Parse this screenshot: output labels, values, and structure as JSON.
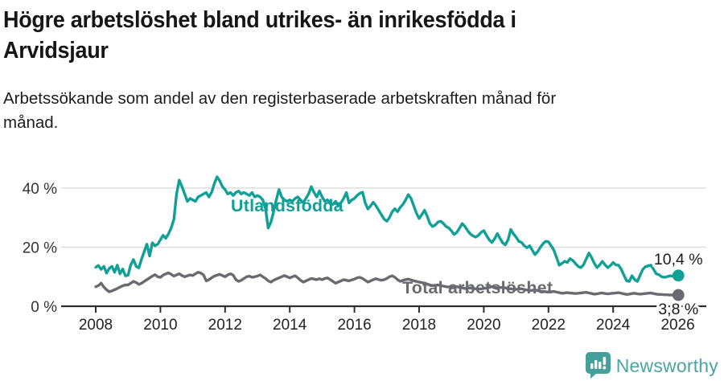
{
  "header": {
    "title_lines": [
      "Högre arbetslöshet bland utrikes- än inrikesfödda i",
      "Arvidsjaur"
    ],
    "subtitle_lines": [
      "Arbetssökande som andel av den registerbaserade arbetskraften månad för",
      "månad."
    ]
  },
  "footer": {
    "brand": "Newsworthy"
  },
  "colors": {
    "foreign_born": "#11a096",
    "total": "#6a6a71",
    "grid": "#d8d8d8",
    "axis": "#2e2e2e",
    "tick_label": "#222222",
    "value_label": "#1a1a1a",
    "logo": "#45a09c"
  },
  "chart_data": {
    "type": "line",
    "title": "Högre arbetslöshet bland utrikes- än inrikesfödda i Arvidsjaur",
    "subtitle": "Arbetssökande som andel av den registerbaserade arbetskraften månad för månad.",
    "x_unit": "monthly, Jan 2008 – Dec 2025",
    "x_start_year": 2008,
    "x_step_months": 1,
    "ylim": [
      0,
      46
    ],
    "grid": "horizontal",
    "legend_position": "inline-labels",
    "y_ticks": [
      {
        "value": 0,
        "label": "0 %"
      },
      {
        "value": 20,
        "label": "20 %"
      },
      {
        "value": 40,
        "label": "40 %"
      }
    ],
    "x_ticks": [
      {
        "value": 2008,
        "label": "2008"
      },
      {
        "value": 2010,
        "label": "2010"
      },
      {
        "value": 2012,
        "label": "2012"
      },
      {
        "value": 2014,
        "label": "2014"
      },
      {
        "value": 2016,
        "label": "2016"
      },
      {
        "value": 2018,
        "label": "2018"
      },
      {
        "value": 2020,
        "label": "2020"
      },
      {
        "value": 2022,
        "label": "2022"
      },
      {
        "value": 2024,
        "label": "2024"
      },
      {
        "value": 2026,
        "label": "2026"
      }
    ],
    "series": [
      {
        "name": "Utlandsfödda",
        "color": "#11a096",
        "end_label": "10,4 %",
        "end_value": 10.4,
        "values": [
          13.2,
          13.8,
          12.5,
          13.5,
          11.2,
          12.8,
          13.5,
          11.5,
          13.9,
          11.0,
          12.6,
          10.3,
          10.5,
          14.0,
          15.8,
          13.5,
          13.0,
          16.0,
          18.5,
          21.0,
          17.0,
          21.5,
          20.5,
          21.0,
          22.5,
          24.0,
          23.0,
          24.5,
          26.5,
          29.5,
          38.0,
          42.7,
          40.5,
          38.0,
          35.5,
          36.5,
          36.0,
          35.5,
          37.0,
          37.5,
          38.0,
          38.5,
          37.0,
          38.5,
          41.5,
          43.8,
          42.5,
          40.5,
          39.5,
          38.0,
          38.5,
          37.5,
          38.5,
          39.0,
          38.0,
          38.5,
          38.0,
          37.5,
          38.5,
          37.0,
          37.5,
          37.0,
          36.0,
          33.0,
          26.5,
          28.5,
          32.0,
          36.0,
          39.5,
          37.0,
          36.0,
          35.5,
          36.0,
          35.5,
          36.5,
          37.0,
          36.0,
          35.0,
          36.5,
          38.0,
          40.5,
          38.5,
          37.0,
          39.0,
          37.0,
          35.5,
          36.0,
          35.0,
          34.5,
          35.5,
          34.0,
          35.0,
          36.5,
          38.5,
          35.0,
          36.0,
          36.5,
          37.5,
          38.2,
          38.6,
          35.0,
          32.9,
          34.0,
          35.2,
          34.0,
          32.5,
          31.0,
          29.5,
          28.8,
          30.0,
          32.0,
          33.0,
          32.0,
          33.5,
          34.5,
          36.0,
          37.8,
          36.5,
          34.0,
          31.5,
          29.7,
          31.0,
          32.5,
          30.5,
          28.0,
          27.0,
          27.5,
          28.5,
          28.8,
          28.0,
          27.0,
          26.5,
          25.5,
          24.3,
          25.0,
          26.5,
          28.0,
          27.0,
          25.6,
          24.5,
          23.8,
          23.4,
          24.0,
          25.0,
          25.6,
          24.0,
          22.5,
          21.6,
          22.8,
          24.6,
          23.0,
          21.5,
          20.8,
          22.5,
          26.0,
          24.5,
          23.4,
          22.0,
          21.6,
          20.5,
          19.8,
          20.5,
          19.0,
          17.5,
          18.5,
          20.0,
          21.2,
          22.0,
          21.8,
          20.5,
          19.0,
          16.5,
          13.9,
          14.5,
          15.2,
          14.8,
          16.1,
          15.5,
          14.5,
          13.5,
          13.1,
          14.0,
          16.0,
          18.0,
          16.5,
          14.5,
          13.1,
          14.0,
          15.2,
          14.0,
          13.1,
          13.8,
          14.8,
          14.0,
          13.9,
          12.5,
          10.5,
          8.6,
          8.4,
          10.3,
          9.0,
          8.4,
          10.5,
          12.5,
          13.4,
          13.7,
          13.9,
          12.5,
          11.0,
          10.7,
          10.0,
          9.8,
          10.0,
          10.3,
          10.2,
          10.4
        ]
      },
      {
        "name": "Total arbetslöshet",
        "color": "#6a6a71",
        "end_label": "3,8 %",
        "end_value": 3.8,
        "values": [
          6.6,
          7.0,
          7.8,
          6.5,
          5.6,
          4.9,
          5.2,
          5.6,
          6.0,
          6.5,
          6.9,
          7.2,
          7.2,
          7.8,
          8.4,
          8.0,
          7.4,
          7.8,
          8.4,
          9.0,
          9.6,
          10.2,
          10.7,
          10.0,
          9.8,
          10.5,
          11.0,
          11.3,
          10.8,
          10.2,
          10.6,
          11.0,
          10.4,
          10.0,
          10.3,
          10.6,
          10.4,
          11.0,
          11.5,
          11.2,
          10.6,
          8.6,
          9.0,
          9.6,
          10.2,
          10.5,
          10.8,
          10.4,
          10.0,
          10.6,
          11.0,
          10.5,
          9.0,
          8.4,
          8.8,
          9.4,
          10.0,
          10.2,
          9.8,
          10.0,
          10.2,
          10.6,
          10.0,
          9.4,
          8.6,
          8.2,
          8.8,
          9.2,
          9.6,
          10.0,
          10.4,
          10.0,
          9.6,
          10.0,
          10.3,
          9.6,
          8.8,
          8.2,
          8.6,
          9.0,
          9.4,
          9.2,
          9.0,
          9.3,
          9.0,
          9.4,
          9.6,
          9.0,
          8.4,
          7.8,
          8.2,
          8.6,
          9.0,
          8.8,
          8.6,
          8.9,
          9.2,
          9.6,
          9.8,
          9.4,
          8.8,
          8.2,
          8.6,
          9.0,
          9.3,
          9.0,
          8.8,
          9.0,
          9.4,
          10.0,
          10.3,
          9.8,
          9.0,
          8.4,
          8.8,
          9.0,
          9.2,
          8.9,
          8.6,
          8.4,
          8.2,
          8.0,
          7.8,
          7.5,
          7.2,
          7.0,
          7.1,
          7.2,
          7.0,
          6.8,
          6.6,
          6.5,
          6.4,
          6.5,
          6.6,
          6.4,
          6.2,
          6.0,
          6.1,
          6.2,
          6.0,
          5.9,
          5.8,
          5.9,
          6.0,
          6.2,
          6.4,
          6.6,
          6.4,
          6.2,
          6.3,
          6.4,
          6.2,
          6.0,
          5.9,
          5.8,
          5.7,
          5.8,
          5.9,
          5.7,
          5.5,
          5.3,
          5.4,
          5.5,
          5.3,
          5.1,
          5.0,
          4.9,
          4.8,
          4.9,
          5.0,
          4.8,
          4.6,
          4.4,
          4.5,
          4.6,
          4.5,
          4.4,
          4.3,
          4.4,
          4.5,
          4.6,
          4.7,
          4.5,
          4.3,
          4.1,
          4.2,
          4.4,
          4.5,
          4.3,
          4.2,
          4.3,
          4.4,
          4.5,
          4.6,
          4.4,
          4.2,
          4.0,
          4.1,
          4.3,
          4.4,
          4.2,
          4.1,
          4.2,
          4.3,
          4.4,
          4.5,
          4.3,
          4.1,
          4.0,
          4.0,
          3.9,
          3.9,
          3.8,
          3.8,
          3.8
        ]
      }
    ]
  }
}
